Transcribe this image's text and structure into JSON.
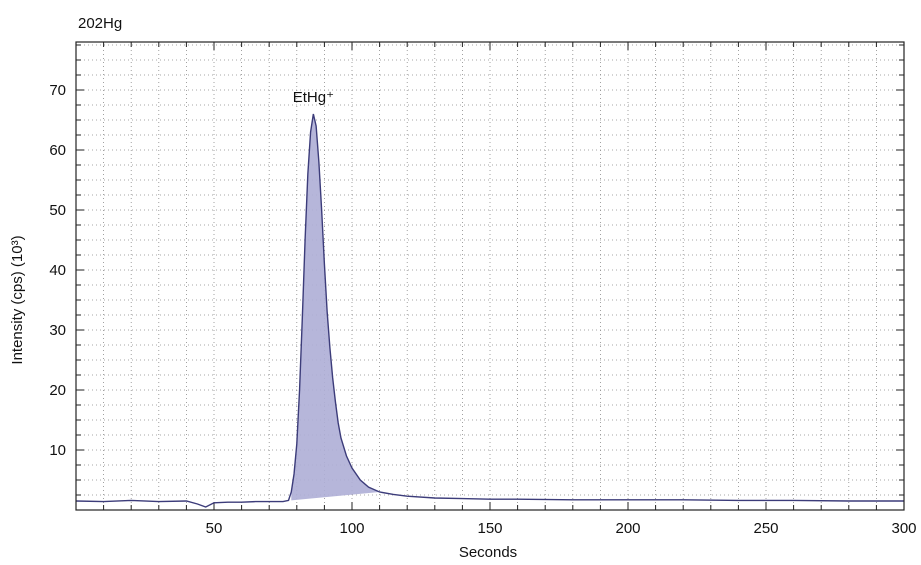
{
  "chart_data": {
    "type": "area",
    "title": "202Hg",
    "xlabel": "Seconds",
    "ylabel": "Intensity (cps) (10³)",
    "xlim": [
      0,
      300
    ],
    "ylim": [
      0,
      78
    ],
    "x_ticks": [
      50,
      100,
      150,
      200,
      250,
      300
    ],
    "y_ticks": [
      10,
      20,
      30,
      40,
      50,
      60,
      70
    ],
    "grid": true,
    "colors": {
      "line": "#3c3c7a",
      "fill": "#aeaed6",
      "grid": "#8a8a8a"
    },
    "annotations": [
      {
        "text": "EtHg⁺",
        "x": 86,
        "y": 67
      }
    ],
    "series": [
      {
        "x": [
          0,
          10,
          20,
          30,
          40,
          44,
          47,
          50,
          55,
          60,
          65,
          70,
          75,
          77,
          78,
          79,
          80,
          81,
          82,
          83,
          84,
          85,
          86,
          87,
          88,
          89,
          90,
          91,
          92,
          93,
          94,
          95,
          96,
          98,
          100,
          103,
          106,
          110,
          115,
          120,
          130,
          140,
          150,
          160,
          180,
          200,
          220,
          240,
          260,
          280,
          300
        ],
        "y": [
          1.5,
          1.4,
          1.6,
          1.4,
          1.5,
          1.0,
          0.5,
          1.2,
          1.3,
          1.3,
          1.4,
          1.4,
          1.4,
          1.6,
          3.0,
          6.0,
          11.0,
          20.0,
          32.0,
          45.0,
          56.0,
          63.0,
          66.0,
          64.0,
          58.0,
          50.0,
          41.0,
          33.0,
          27.0,
          22.0,
          18.0,
          14.5,
          12.0,
          9.0,
          7.0,
          5.0,
          3.8,
          3.0,
          2.6,
          2.3,
          2.0,
          1.9,
          1.8,
          1.8,
          1.7,
          1.7,
          1.7,
          1.6,
          1.6,
          1.5,
          1.5
        ]
      }
    ],
    "integration_baseline": {
      "x": [
        78,
        110
      ],
      "y": [
        1.6,
        3.0
      ]
    }
  }
}
